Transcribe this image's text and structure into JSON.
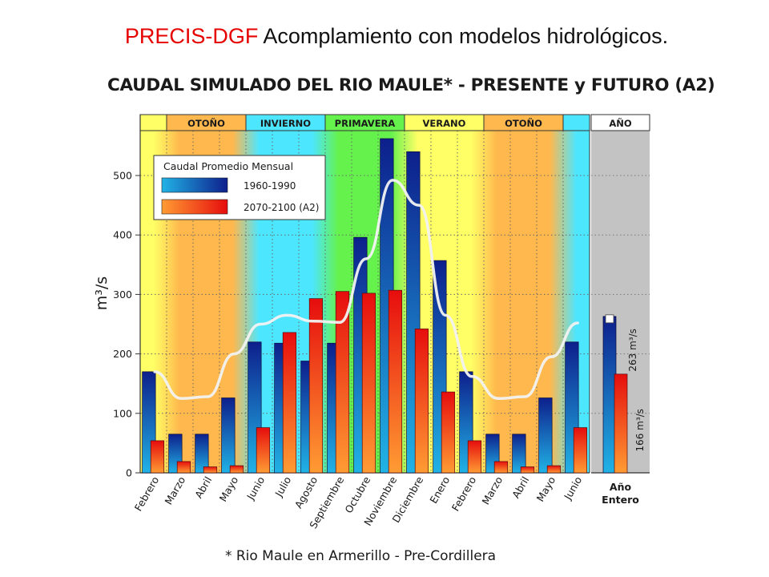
{
  "slide_title": {
    "accent": "PRECIS-DGF",
    "rest": "Acomplamiento con modelos hidrológicos."
  },
  "footnote": "* Rio Maule en Armerillo - Pre-Cordillera",
  "colors": {
    "present_dark": "#0d1f8c",
    "present_light": "#21b3e6",
    "future_dark": "#e60d0d",
    "future_light": "#ff9c33",
    "line": "#f2f2f2",
    "year_panel": "#c3c3c3"
  },
  "chart_data": {
    "type": "bar",
    "title": "CAUDAL SIMULADO DEL RIO MAULE* - PRESENTE y FUTURO (A2)",
    "ylabel": "m³/s",
    "ylim": [
      0,
      580
    ],
    "yticks": [
      0,
      100,
      200,
      300,
      400,
      500
    ],
    "grid": true,
    "categories": [
      "Febrero",
      "Marzo",
      "Abril",
      "Mayo",
      "Junio",
      "Julio",
      "Agosto",
      "Septiembre",
      "Octubre",
      "Noviembre",
      "Diciembre",
      "Enero",
      "Febrero",
      "Marzo",
      "Abril",
      "Mayo",
      "Junio"
    ],
    "seasons": [
      {
        "label": "",
        "start": 0,
        "end": 1,
        "color": "#ffff66"
      },
      {
        "label": "OTOÑO",
        "start": 1,
        "end": 4,
        "color": "#ffb84d"
      },
      {
        "label": "INVIERNO",
        "start": 4,
        "end": 7,
        "color": "#4de6ff"
      },
      {
        "label": "PRIMAVERA",
        "start": 7,
        "end": 10,
        "color": "#66f24d"
      },
      {
        "label": "VERANO",
        "start": 10,
        "end": 13,
        "color": "#ffff66"
      },
      {
        "label": "OTOÑO",
        "start": 13,
        "end": 16,
        "color": "#ffb84d"
      },
      {
        "label": "",
        "start": 16,
        "end": 17,
        "color": "#4de6ff"
      }
    ],
    "legend": {
      "title": "Caudal Promedio Mensual",
      "position": "top-left"
    },
    "series": [
      {
        "name": "1960-1990",
        "values": [
          170,
          65,
          65,
          126,
          220,
          218,
          188,
          218,
          396,
          562,
          540,
          357,
          170,
          65,
          65,
          126,
          220
        ]
      },
      {
        "name": "2070-2100 (A2)",
        "values": [
          54,
          19,
          10,
          12,
          76,
          236,
          293,
          305,
          302,
          307,
          242,
          136,
          54,
          19,
          10,
          12,
          76
        ]
      }
    ],
    "line_series": {
      "name": "",
      "values": [
        170,
        125,
        128,
        200,
        250,
        265,
        255,
        253,
        360,
        492,
        450,
        265,
        162,
        125,
        128,
        195,
        252
      ]
    },
    "annual": {
      "header": "AÑO",
      "category": [
        "Año",
        "Entero"
      ],
      "present": 263,
      "future": 166,
      "present_label": "263 m³/s",
      "future_label": "166 m³/s"
    }
  }
}
